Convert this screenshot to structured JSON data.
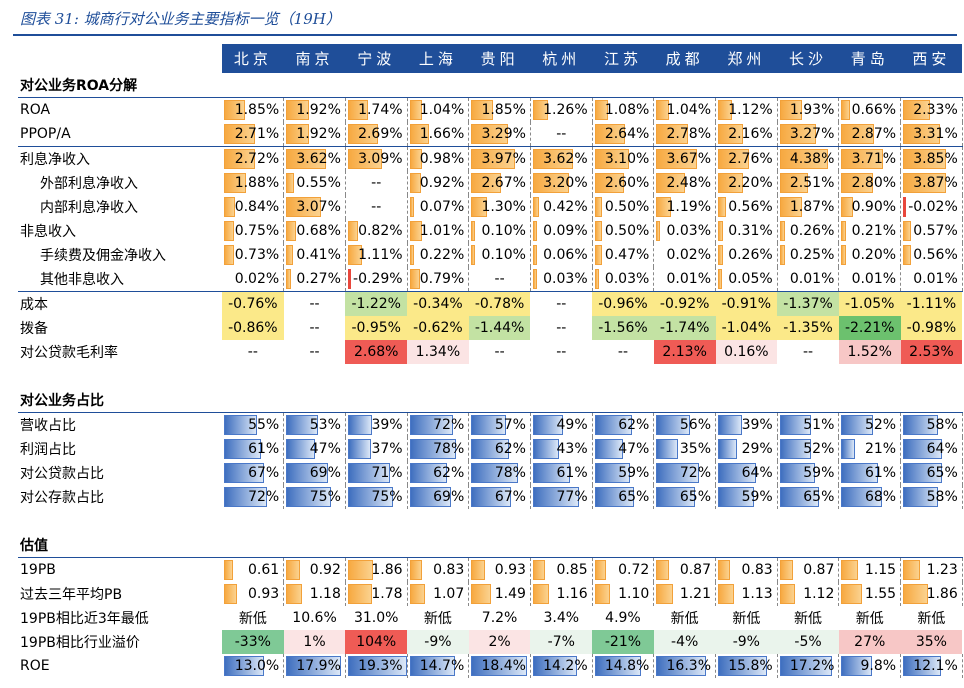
{
  "title": "图表 31:  城商行对公业务主要指标一览（19H）",
  "cities": [
    "北京",
    "南京",
    "宁波",
    "上海",
    "贵阳",
    "杭州",
    "江苏",
    "成都",
    "郑州",
    "长沙",
    "青岛",
    "西安"
  ],
  "sections": [
    {
      "header": "对公业务ROA分解",
      "rows": [
        {
          "label": "ROA",
          "style": "bar-orange",
          "values": [
            "1.85%",
            "1.92%",
            "1.74%",
            "1.04%",
            "1.85%",
            "1.26%",
            "1.08%",
            "1.04%",
            "1.12%",
            "1.93%",
            "0.66%",
            "2.33%"
          ],
          "fill": [
            0.34,
            0.36,
            0.32,
            0.19,
            0.34,
            0.23,
            0.2,
            0.19,
            0.21,
            0.36,
            0.12,
            0.43
          ]
        },
        {
          "label": "PPOP/A",
          "style": "bar-orange",
          "values": [
            "2.71%",
            "1.92%",
            "2.69%",
            "1.66%",
            "3.29%",
            "--",
            "2.64%",
            "2.78%",
            "2.16%",
            "3.27%",
            "2.87%",
            "3.31%"
          ],
          "fill": [
            0.5,
            0.36,
            0.5,
            0.31,
            0.61,
            0,
            0.49,
            0.52,
            0.4,
            0.61,
            0.53,
            0.61
          ]
        },
        {
          "label": "利息净收入",
          "style": "bar-orange",
          "sub": false,
          "values": [
            "2.72%",
            "3.62%",
            "3.09%",
            "0.98%",
            "3.97%",
            "3.62%",
            "3.10%",
            "3.67%",
            "2.76%",
            "4.38%",
            "3.71%",
            "3.85%"
          ],
          "fill": [
            0.5,
            0.67,
            0.57,
            0.18,
            0.74,
            0.67,
            0.57,
            0.68,
            0.51,
            0.81,
            0.69,
            0.71
          ]
        },
        {
          "label": "外部利息净收入",
          "style": "bar-orange",
          "sub": true,
          "values": [
            "1.88%",
            "0.55%",
            "--",
            "0.92%",
            "2.67%",
            "3.20%",
            "2.60%",
            "2.48%",
            "2.20%",
            "2.51%",
            "2.80%",
            "3.87%"
          ],
          "fill": [
            0.35,
            0.1,
            0,
            0.17,
            0.49,
            0.59,
            0.48,
            0.46,
            0.41,
            0.46,
            0.52,
            0.72
          ]
        },
        {
          "label": "内部利息净收入",
          "style": "bar-orange",
          "sub": true,
          "values": [
            "0.84%",
            "3.07%",
            "--",
            "0.07%",
            "1.30%",
            "0.42%",
            "0.50%",
            "1.19%",
            "0.56%",
            "1.87%",
            "0.90%",
            "-0.02%"
          ],
          "fill": [
            0.16,
            0.57,
            0,
            0.01,
            0.24,
            0.08,
            0.09,
            0.22,
            0.1,
            0.35,
            0.17,
            0
          ]
        },
        {
          "label": "非息收入",
          "style": "bar-orange",
          "sub": false,
          "values": [
            "0.75%",
            "0.68%",
            "0.82%",
            "1.01%",
            "0.10%",
            "0.09%",
            "0.50%",
            "0.03%",
            "0.31%",
            "0.26%",
            "0.21%",
            "0.57%"
          ],
          "fill": [
            0.14,
            0.13,
            0.15,
            0.19,
            0.02,
            0.02,
            0.09,
            0.01,
            0.06,
            0.05,
            0.04,
            0.11
          ]
        },
        {
          "label": "手续费及佣金净收入",
          "style": "bar-orange",
          "sub": true,
          "values": [
            "0.73%",
            "0.41%",
            "1.11%",
            "0.22%",
            "0.10%",
            "0.06%",
            "0.47%",
            "0.02%",
            "0.26%",
            "0.25%",
            "0.20%",
            "0.56%"
          ],
          "fill": [
            0.14,
            0.08,
            0.21,
            0.04,
            0.02,
            0.01,
            0.09,
            0,
            0.05,
            0.05,
            0.04,
            0.1
          ]
        },
        {
          "label": "其他非息收入",
          "style": "bar-orange",
          "sub": true,
          "values": [
            "0.02%",
            "0.27%",
            "-0.29%",
            "0.79%",
            "--",
            "0.03%",
            "0.03%",
            "0.01%",
            "0.05%",
            "0.01%",
            "0.01%",
            "0.01%"
          ],
          "fill": [
            0,
            0.05,
            0,
            0.15,
            0,
            0.01,
            0.01,
            0,
            0.01,
            0,
            0,
            0
          ]
        },
        {
          "label": "成本",
          "style": "color",
          "values": [
            "-0.76%",
            "--",
            "-1.22%",
            "-0.34%",
            "-0.78%",
            "--",
            "-0.96%",
            "-0.92%",
            "-0.91%",
            "-1.37%",
            "-1.05%",
            "-1.11%"
          ],
          "colors": [
            "c-yellow",
            "",
            "c-lightgreen",
            "c-yellow",
            "c-yellow",
            "",
            "c-yellow",
            "c-yellow",
            "c-yellow",
            "c-lightgreen",
            "c-yellow",
            "c-yellow"
          ]
        },
        {
          "label": "拨备",
          "style": "color",
          "values": [
            "-0.86%",
            "--",
            "-0.95%",
            "-0.62%",
            "-1.44%",
            "--",
            "-1.56%",
            "-1.74%",
            "-1.04%",
            "-1.35%",
            "-2.21%",
            "-0.98%"
          ],
          "colors": [
            "c-yellow",
            "",
            "c-yellow",
            "c-yellow",
            "c-lightgreen",
            "",
            "c-lightgreen",
            "c-lightgreen",
            "c-yellow",
            "c-yellow",
            "c-green",
            "c-yellow"
          ]
        },
        {
          "label": "对公贷款毛利率",
          "style": "color",
          "values": [
            "--",
            "--",
            "2.68%",
            "1.34%",
            "--",
            "--",
            "--",
            "2.13%",
            "0.16%",
            "--",
            "1.52%",
            "2.53%"
          ],
          "colors": [
            "",
            "",
            "c-red",
            "c-lightpink",
            "",
            "",
            "",
            "c-red",
            "c-lightpink",
            "",
            "c-pink",
            "c-red"
          ]
        }
      ]
    },
    {
      "header": "对公业务占比",
      "rows": [
        {
          "label": "营收占比",
          "style": "bar-blue",
          "values": [
            "55%",
            "53%",
            "39%",
            "72%",
            "57%",
            "49%",
            "62%",
            "56%",
            "39%",
            "51%",
            "52%",
            "58%"
          ],
          "fill": [
            0.55,
            0.53,
            0.39,
            0.72,
            0.57,
            0.49,
            0.62,
            0.56,
            0.39,
            0.51,
            0.52,
            0.58
          ]
        },
        {
          "label": "利润占比",
          "style": "bar-blue",
          "values": [
            "61%",
            "47%",
            "37%",
            "78%",
            "62%",
            "43%",
            "47%",
            "35%",
            "29%",
            "52%",
            "21%",
            "64%"
          ],
          "fill": [
            0.61,
            0.47,
            0.37,
            0.78,
            0.62,
            0.43,
            0.47,
            0.35,
            0.29,
            0.52,
            0.21,
            0.64
          ]
        },
        {
          "label": "对公贷款占比",
          "style": "bar-blue",
          "values": [
            "67%",
            "69%",
            "71%",
            "62%",
            "78%",
            "61%",
            "59%",
            "72%",
            "64%",
            "59%",
            "61%",
            "65%"
          ],
          "fill": [
            0.67,
            0.69,
            0.71,
            0.62,
            0.78,
            0.61,
            0.59,
            0.72,
            0.64,
            0.59,
            0.61,
            0.65
          ]
        },
        {
          "label": "对公存款占比",
          "style": "bar-blue",
          "values": [
            "72%",
            "75%",
            "75%",
            "69%",
            "67%",
            "77%",
            "65%",
            "65%",
            "59%",
            "65%",
            "68%",
            "58%"
          ],
          "fill": [
            0.72,
            0.75,
            0.75,
            0.69,
            0.67,
            0.77,
            0.65,
            0.65,
            0.59,
            0.65,
            0.68,
            0.58
          ]
        }
      ]
    },
    {
      "header": "估值",
      "rows": [
        {
          "label": "19PB",
          "style": "bar-orange",
          "values": [
            "0.61",
            "0.92",
            "1.86",
            "0.83",
            "0.93",
            "0.85",
            "0.72",
            "0.87",
            "0.83",
            "0.87",
            "1.15",
            "1.23"
          ],
          "fill": [
            0.13,
            0.2,
            0.4,
            0.18,
            0.2,
            0.18,
            0.16,
            0.19,
            0.18,
            0.19,
            0.25,
            0.27
          ]
        },
        {
          "label": "过去三年平均PB",
          "style": "bar-orange",
          "values": [
            "0.93",
            "1.18",
            "1.78",
            "1.07",
            "1.49",
            "1.16",
            "1.10",
            "1.21",
            "1.13",
            "1.12",
            "1.55",
            "1.86"
          ],
          "fill": [
            0.2,
            0.25,
            0.38,
            0.23,
            0.32,
            0.25,
            0.24,
            0.26,
            0.24,
            0.24,
            0.33,
            0.4
          ]
        },
        {
          "label": "19PB相比近3年最低",
          "style": "plain",
          "values": [
            "新低",
            "10.6%",
            "31.0%",
            "新低",
            "7.2%",
            "3.4%",
            "4.9%",
            "新低",
            "新低",
            "新低",
            "新低",
            "新低"
          ]
        },
        {
          "label": "19PB相比行业溢价",
          "style": "color",
          "values": [
            "-33%",
            "1%",
            "104%",
            "-9%",
            "2%",
            "-7%",
            "-21%",
            "-4%",
            "-9%",
            "-5%",
            "27%",
            "35%"
          ],
          "colors": [
            "c-pgreen",
            "c-lightpink",
            "c-red",
            "c-lpgreen",
            "c-lightpink",
            "c-lpgreen",
            "c-pgreen",
            "c-lpgreen",
            "c-lpgreen",
            "c-lpgreen",
            "c-pink",
            "c-pink"
          ]
        },
        {
          "label": "ROE",
          "style": "bar-blue",
          "values": [
            "13.0%",
            "17.9%",
            "19.3%",
            "14.7%",
            "18.4%",
            "14.2%",
            "14.8%",
            "16.3%",
            "15.8%",
            "17.2%",
            "9.8%",
            "12.1%"
          ],
          "fill": [
            0.67,
            0.93,
            1,
            0.76,
            0.95,
            0.74,
            0.77,
            0.84,
            0.82,
            0.89,
            0.51,
            0.63
          ]
        }
      ]
    }
  ]
}
